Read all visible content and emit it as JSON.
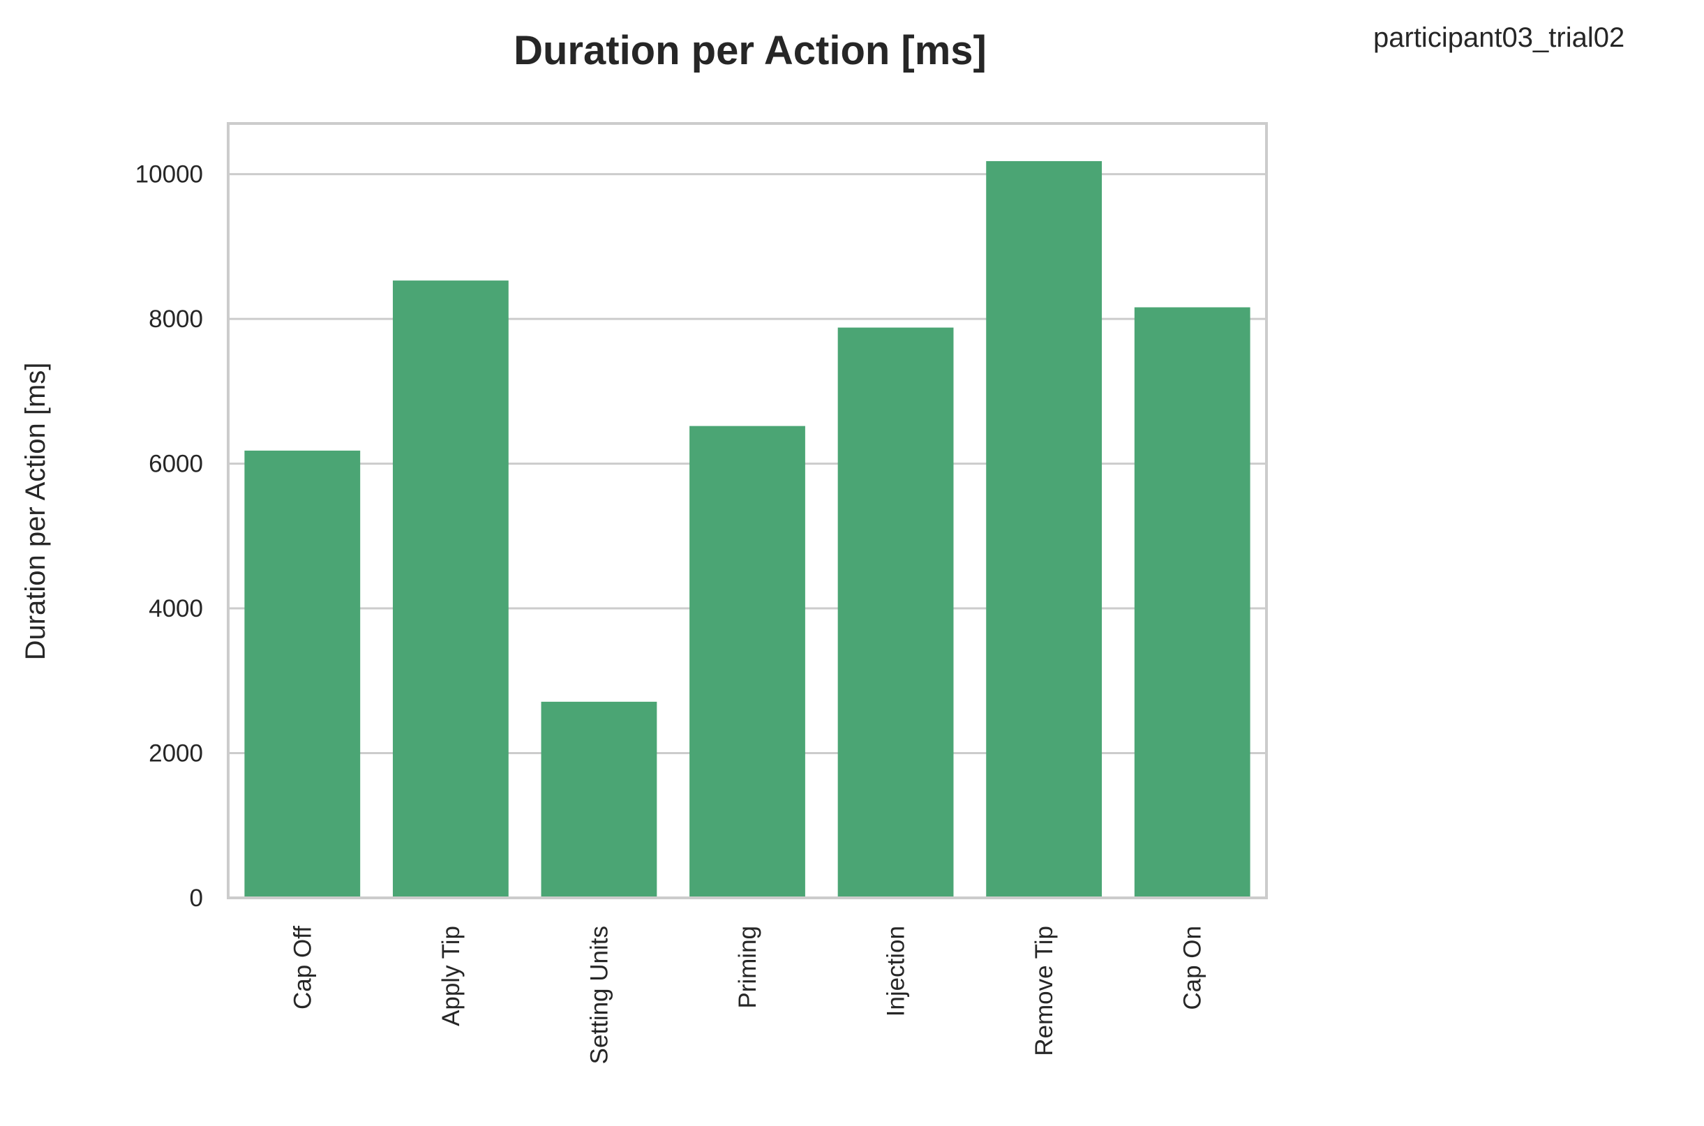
{
  "annotation": "participant03_trial02",
  "colors": {
    "bar": "#4ba574",
    "grid": "#cccccc",
    "frame": "#cccccc",
    "text": "#262626",
    "background": "#ffffff"
  },
  "chart_data": {
    "type": "bar",
    "title": "Duration per Action [ms]",
    "xlabel": "",
    "ylabel": "Duration per Action [ms]",
    "categories": [
      "Cap Off",
      "Apply Tip",
      "Setting Units",
      "Priming",
      "Injection",
      "Remove Tip",
      "Cap On"
    ],
    "values": [
      6180,
      8530,
      2710,
      6520,
      7880,
      10180,
      8160
    ],
    "ylim": [
      0,
      10700
    ],
    "yticks": [
      0,
      2000,
      4000,
      6000,
      8000,
      10000
    ],
    "grid": "y-axis",
    "legend": "none"
  }
}
